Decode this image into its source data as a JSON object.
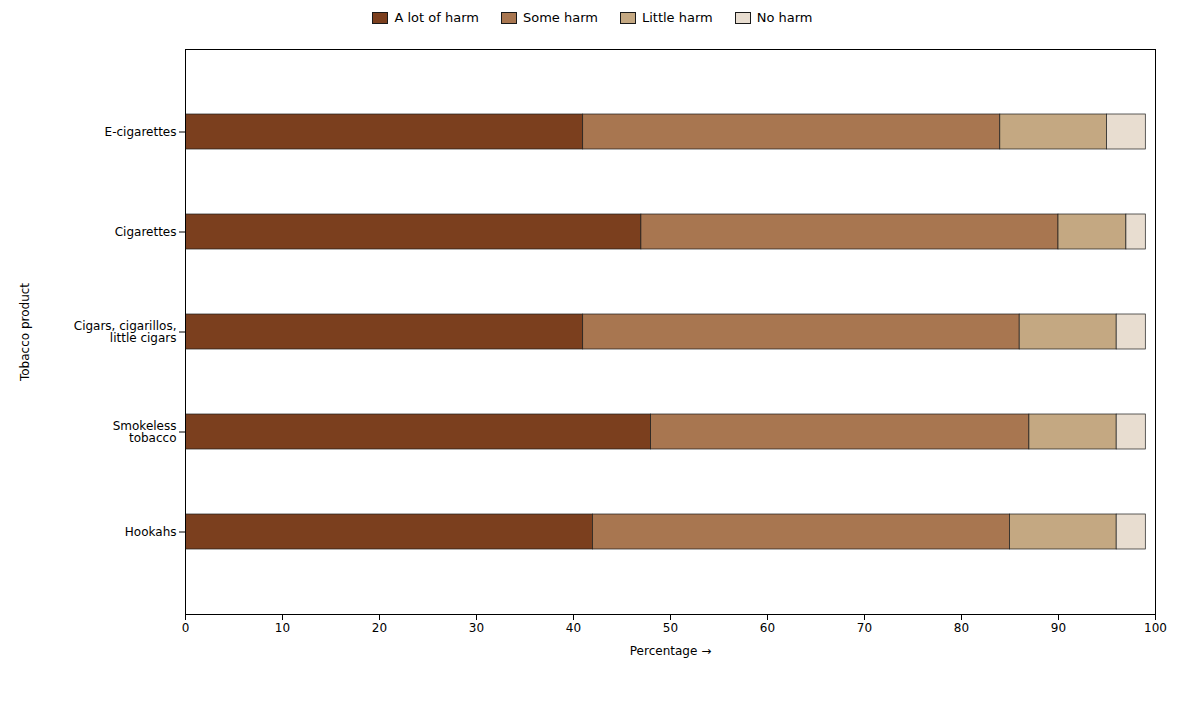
{
  "chart_data": {
    "type": "bar",
    "orientation": "horizontal",
    "stacked": true,
    "categories": [
      "Hookahs",
      "Smokeless\ntobacco",
      "Cigars, cigarillos,\nlittle cigars",
      "Cigarettes",
      "E-cigarettes"
    ],
    "series": [
      {
        "name": "A lot of harm",
        "color": "#7B3F1E",
        "values": [
          42,
          48,
          41,
          47,
          41
        ]
      },
      {
        "name": "Some harm",
        "color": "#A87650",
        "values": [
          43,
          39,
          45,
          43,
          43
        ]
      },
      {
        "name": "Little harm",
        "color": "#C4A882",
        "values": [
          11,
          9,
          10,
          7,
          11
        ]
      },
      {
        "name": "No harm",
        "color": "#E8DDD0",
        "values": [
          3,
          3,
          3,
          2,
          4
        ]
      }
    ],
    "xlabel": "Percentage",
    "ylabel": "Tobacco product",
    "xlim": [
      0,
      100
    ],
    "xticks": [
      0,
      10,
      20,
      30,
      40,
      50,
      60,
      70,
      80,
      90,
      100
    ],
    "grid": false,
    "legend": "upper center"
  }
}
